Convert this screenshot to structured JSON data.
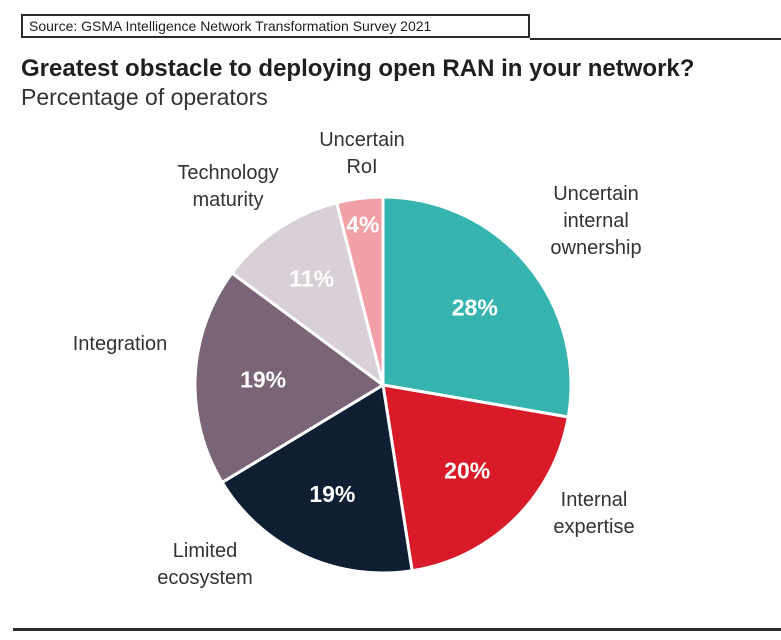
{
  "source": "Source: GSMA Intelligence Network Transformation Survey 2021",
  "colors": {
    "teal": "#36b5b0",
    "red": "#d91a28",
    "navy": "#0f1f33",
    "mauve": "#7a6577",
    "light_grey": "#d8d0d6",
    "pink": "#f2a0a7"
  },
  "chart_data": {
    "type": "pie",
    "title": "Greatest obstacle to deploying open RAN in your network?",
    "subtitle": "Percentage of operators",
    "unit": "%",
    "slices": [
      {
        "label": [
          "Uncertain",
          "internal",
          "ownership"
        ],
        "value": 28,
        "display": "28%",
        "color": "#36b5b0",
        "value_color": "#ffffff"
      },
      {
        "label": [
          "Internal",
          "expertise"
        ],
        "value": 20,
        "display": "20%",
        "color": "#d91a28",
        "value_color": "#ffffff"
      },
      {
        "label": [
          "Limited",
          "ecosystem"
        ],
        "value": 19,
        "display": "19%",
        "color": "#0f1f33",
        "value_color": "#ffffff"
      },
      {
        "label": [
          "Integration"
        ],
        "value": 19,
        "display": "19%",
        "color": "#7a6577",
        "value_color": "#ffffff"
      },
      {
        "label": [
          "Technology",
          "maturity"
        ],
        "value": 11,
        "display": "11%",
        "color": "#d8d0d6",
        "value_color": "#ffffff"
      },
      {
        "label": [
          "Uncertain",
          "RoI"
        ],
        "value": 4,
        "display": "4%",
        "color": "#f2a0a7",
        "value_color": "#ffffff"
      }
    ]
  }
}
